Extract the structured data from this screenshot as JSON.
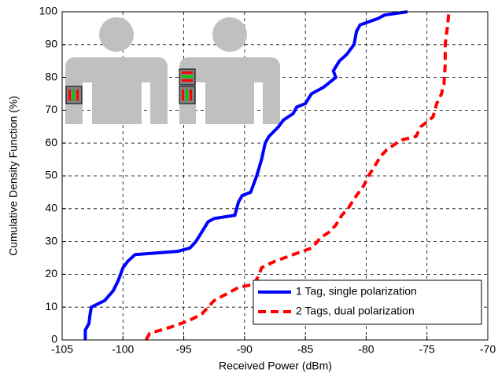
{
  "chart_data": {
    "type": "line",
    "xlabel": "Received Power (dBm)",
    "ylabel": "Cumulative Density Function (%)",
    "xlim": [
      -105,
      -70
    ],
    "xticks": [
      -105,
      -100,
      -95,
      -90,
      -85,
      -80,
      -75,
      -70
    ],
    "ylim": [
      0,
      100
    ],
    "yticks": [
      0,
      10,
      20,
      30,
      40,
      50,
      60,
      70,
      80,
      90,
      100
    ],
    "grid": true,
    "legend": "lower right",
    "series": [
      {
        "name": "1 Tag, single polarization",
        "color": "#0000ff",
        "line_style": "solid",
        "x": [
          -103.1,
          -103.1,
          -102.8,
          -102.7,
          -102.6,
          -101.5,
          -100.8,
          -100.4,
          -100.2,
          -100,
          -99.6,
          -99,
          -95.5,
          -94.5,
          -94,
          -93.5,
          -93,
          -92.5,
          -90.8,
          -90.5,
          -90.2,
          -89.5,
          -89,
          -88.6,
          -88.3,
          -88,
          -87.2,
          -86.8,
          -86,
          -85.7,
          -85,
          -84.5,
          -83.5,
          -82.5,
          -82.7,
          -82.2,
          -81.6,
          -81,
          -80.8,
          -80.5,
          -79,
          -78.5,
          -76.6
        ],
        "values": [
          0,
          3,
          5,
          8,
          10,
          12,
          15,
          18,
          20,
          22,
          24,
          26,
          27,
          28,
          30,
          33,
          36,
          37,
          38,
          42,
          44,
          45,
          50,
          55,
          60,
          62,
          65,
          67,
          69,
          71,
          72,
          75,
          77,
          80,
          82,
          85,
          87,
          90,
          94,
          96,
          98,
          99,
          100
        ]
      },
      {
        "name": "2 Tags, dual polarization",
        "color": "#ff0000",
        "line_style": "dashed",
        "x": [
          -98.1,
          -97.8,
          -96,
          -94.5,
          -93.5,
          -93,
          -92.5,
          -91.5,
          -90.5,
          -89.2,
          -88.8,
          -88.6,
          -87.5,
          -86,
          -84.5,
          -84,
          -83.8,
          -83,
          -82.5,
          -82,
          -81.5,
          -80.8,
          -80.2,
          -79.8,
          -79.3,
          -78.8,
          -78.3,
          -77.5,
          -77,
          -75.9,
          -75.5,
          -74.8,
          -74.5,
          -74.2,
          -73.8,
          -73.7,
          -73.6,
          -73.5,
          -73.5,
          -73.3,
          -73.2
        ],
        "values": [
          0,
          2,
          4,
          6,
          8,
          10,
          12,
          14,
          16,
          17,
          20,
          22,
          24,
          26,
          28,
          30,
          31,
          33,
          35,
          38,
          40,
          44,
          47,
          50,
          53,
          56,
          58,
          60,
          61,
          62,
          65,
          67,
          68,
          72,
          75,
          77,
          78,
          84,
          90,
          96,
          100
        ]
      }
    ]
  }
}
